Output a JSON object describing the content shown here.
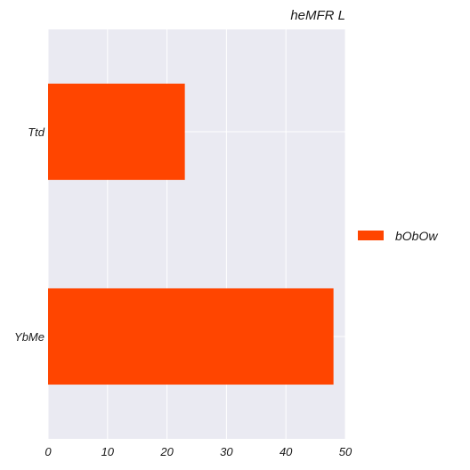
{
  "chart_data": {
    "type": "bar",
    "orientation": "horizontal",
    "title": "heMFR L",
    "categories": [
      "Ttd",
      "YbMe"
    ],
    "series": [
      {
        "name": "bObOw",
        "values": [
          23,
          48
        ],
        "color": "#ff4500"
      }
    ],
    "xlim": [
      0,
      50
    ],
    "xticks": [
      0,
      10,
      20,
      30,
      40,
      50
    ],
    "xlabel": "",
    "ylabel": "",
    "grid": true,
    "legend_position": "right",
    "plot_background": "#eaeaf2",
    "grid_color": "#ffffff"
  }
}
